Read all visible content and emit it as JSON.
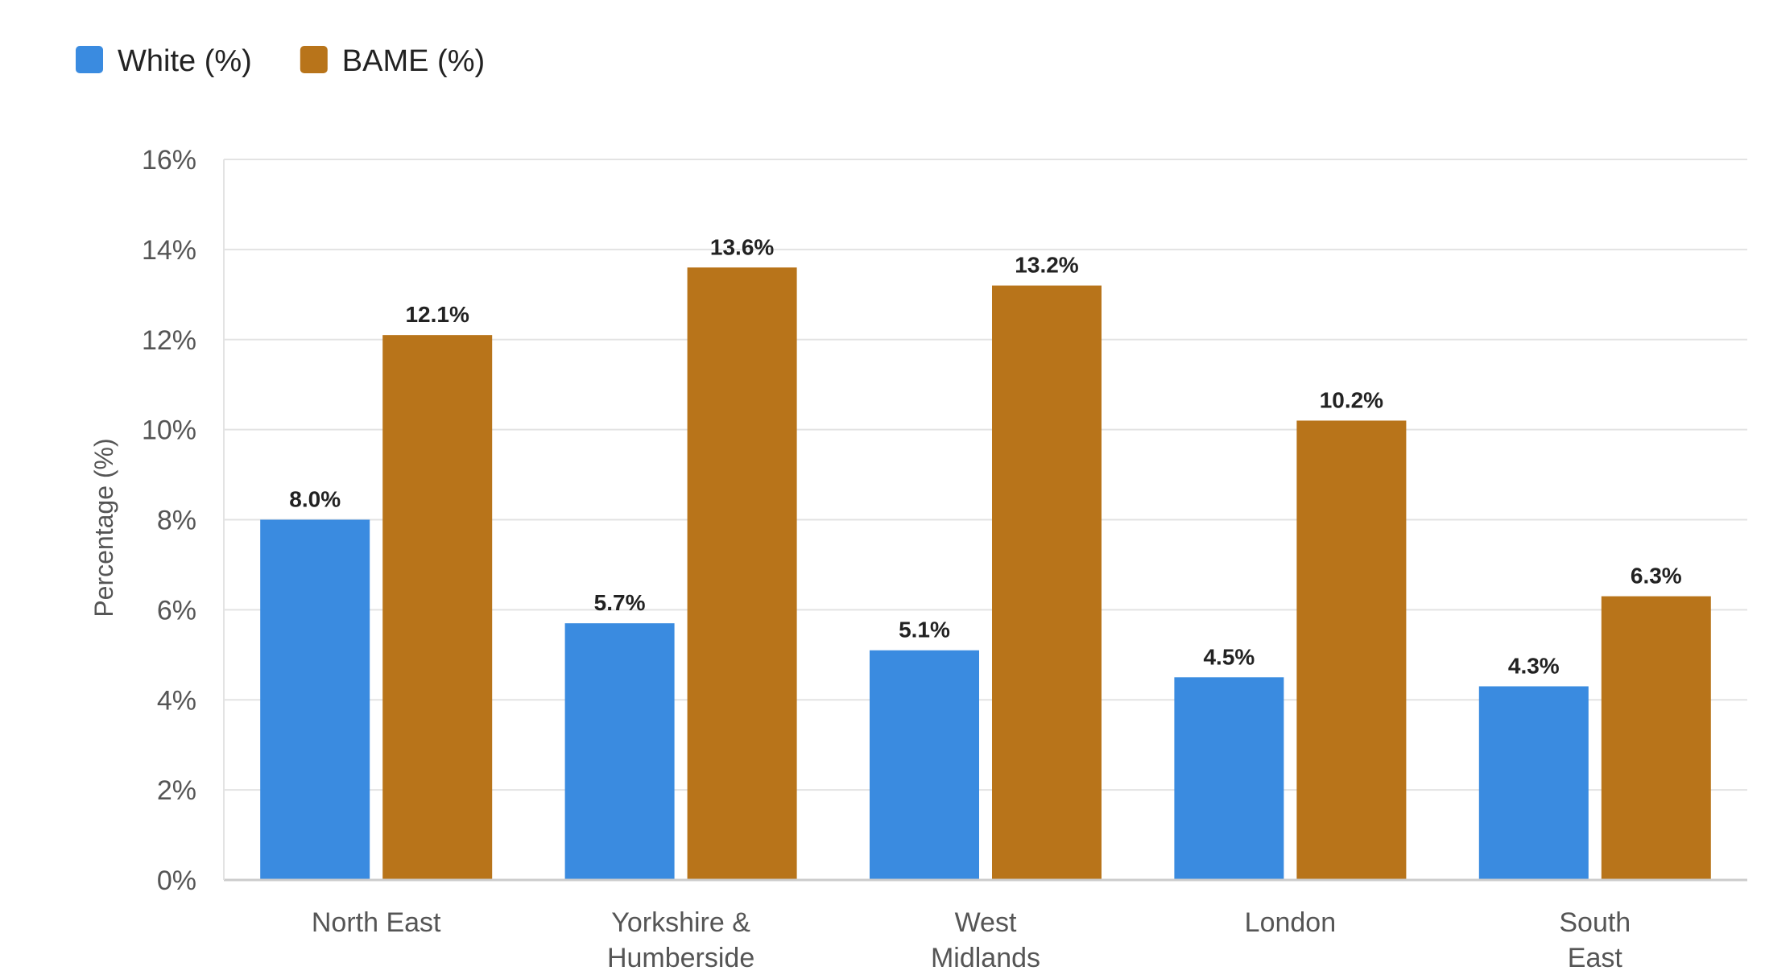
{
  "chart_data": {
    "type": "bar",
    "categories": [
      [
        "North East"
      ],
      [
        "Yorkshire &",
        "Humberside"
      ],
      [
        "West",
        "Midlands"
      ],
      [
        "London"
      ],
      [
        "South",
        "East"
      ]
    ],
    "series": [
      {
        "name": "White (%)",
        "color": "#3a8be0",
        "values": [
          8.0,
          5.7,
          5.1,
          4.5,
          4.3
        ],
        "labels": [
          "8.0%",
          "5.7%",
          "5.1%",
          "4.5%",
          "4.3%"
        ]
      },
      {
        "name": "BAME (%)",
        "color": "#b8741a",
        "values": [
          12.1,
          13.6,
          13.2,
          10.2,
          6.3
        ],
        "labels": [
          "12.1%",
          "13.6%",
          "13.2%",
          "10.2%",
          "6.3%"
        ]
      }
    ],
    "ylabel": "Percentage (%)",
    "xlabel": "",
    "ylim": [
      0,
      16
    ],
    "yticks": [
      0,
      2,
      4,
      6,
      8,
      10,
      12,
      14,
      16
    ],
    "ytick_labels": [
      "0%",
      "2%",
      "4%",
      "6%",
      "8%",
      "10%",
      "12%",
      "14%",
      "16%"
    ],
    "grid": true,
    "legend_position": "top-left"
  }
}
